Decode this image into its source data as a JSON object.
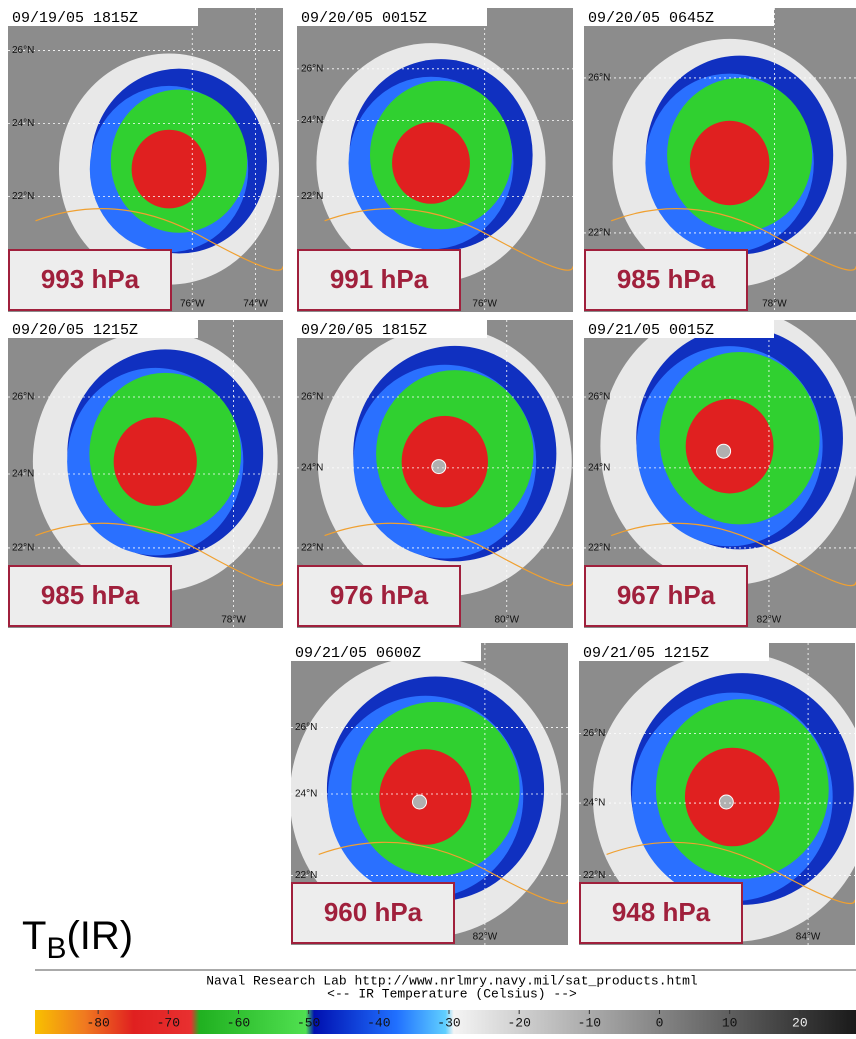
{
  "panels": [
    {
      "timestamp": "09/19/05 1815Z",
      "pressure": "993 hPa",
      "lat_labels": [
        "26°N",
        "24°N",
        "22°N"
      ],
      "lon_labels": [
        "76°W",
        "74°W"
      ]
    },
    {
      "timestamp": "09/20/05 0015Z",
      "pressure": "991 hPa",
      "lat_labels": [
        "26°N",
        "24°N",
        "22°N"
      ],
      "lon_labels": [
        "76°W"
      ]
    },
    {
      "timestamp": "09/20/05 0645Z",
      "pressure": "985 hPa",
      "lat_labels": [
        "26°N",
        "22°N"
      ],
      "lon_labels": [
        "78°W"
      ]
    },
    {
      "timestamp": "09/20/05 1215Z",
      "pressure": "985 hPa",
      "lat_labels": [
        "26°N",
        "24°N",
        "22°N"
      ],
      "lon_labels": [
        "78°W"
      ]
    },
    {
      "timestamp": "09/20/05 1815Z",
      "pressure": "976 hPa",
      "lat_labels": [
        "26°N",
        "24°N",
        "22°N"
      ],
      "lon_labels": [
        "80°W"
      ]
    },
    {
      "timestamp": "09/21/05 0015Z",
      "pressure": "967 hPa",
      "lat_labels": [
        "26°N",
        "24°N",
        "22°N"
      ],
      "lon_labels": [
        "82°W"
      ]
    },
    {
      "timestamp": "09/21/05 0600Z",
      "pressure": "960 hPa",
      "lat_labels": [
        "26°N",
        "24°N",
        "22°N"
      ],
      "lon_labels": [
        "82°W"
      ]
    },
    {
      "timestamp": "09/21/05 1215Z",
      "pressure": "948 hPa",
      "lat_labels": [
        "26°N",
        "24°N",
        "22°N"
      ],
      "lon_labels": [
        "84°W"
      ]
    }
  ],
  "legend_label": {
    "symbol": "T",
    "subscript": "B",
    "suffix": "(IR)"
  },
  "colorbar": {
    "source": "Naval Research Lab http://www.nrlmry.navy.mil/sat_products.html",
    "title": "<--   IR Temperature (Celsius)   -->",
    "xlim": [
      -89,
      28
    ],
    "ticks": [
      -80,
      -70,
      -60,
      -50,
      -40,
      -30,
      -20,
      -10,
      0,
      10,
      20
    ]
  }
}
